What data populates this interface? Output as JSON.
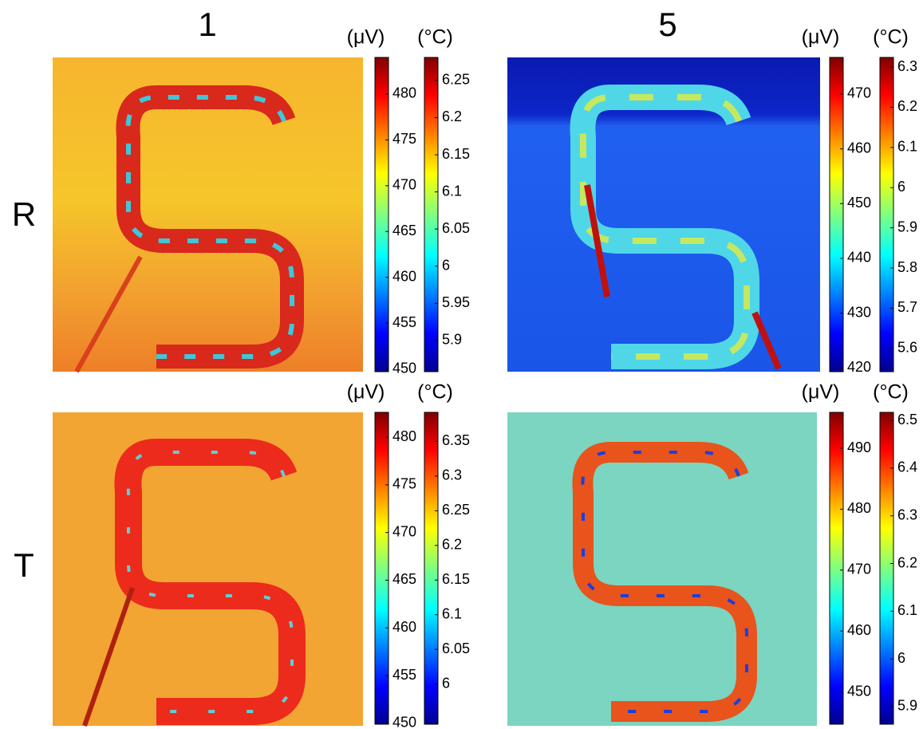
{
  "columns": [
    "1",
    "5"
  ],
  "rows": [
    "R",
    "T"
  ],
  "panels": [
    {
      "colorbars": [
        {
          "unit": "(μV)",
          "lim": [
            449.7,
            484
          ],
          "ticks": [
            480,
            475,
            470,
            465,
            460,
            455,
            450
          ]
        },
        {
          "unit": "(°C)",
          "lim": [
            5.858,
            6.281
          ],
          "ticks": [
            6.25,
            6.2,
            6.15,
            6.1,
            6.05,
            6,
            5.95,
            5.9
          ]
        }
      ]
    },
    {
      "colorbars": [
        {
          "unit": "(μV)",
          "lim": [
            419.3,
            476.7
          ],
          "ticks": [
            470,
            460,
            450,
            440,
            430,
            420
          ]
        },
        {
          "unit": "(°C)",
          "lim": [
            5.542,
            6.324
          ],
          "ticks": [
            6.3,
            6.2,
            6.1,
            6,
            5.9,
            5.8,
            5.7,
            5.6
          ]
        }
      ]
    },
    {
      "colorbars": [
        {
          "unit": "(μV)",
          "lim": [
            449.9,
            482.6
          ],
          "ticks": [
            480,
            475,
            470,
            465,
            460,
            455,
            450
          ]
        },
        {
          "unit": "(°C)",
          "lim": [
            5.942,
            6.392
          ],
          "ticks": [
            6.35,
            6.3,
            6.25,
            6.2,
            6.15,
            6.1,
            6.05,
            6
          ]
        }
      ]
    },
    {
      "colorbars": [
        {
          "unit": "(μV)",
          "lim": [
            444.7,
            495.9
          ],
          "ticks": [
            490,
            480,
            470,
            460,
            450
          ]
        },
        {
          "unit": "(°C)",
          "lim": [
            5.863,
            6.517
          ],
          "ticks": [
            6.5,
            6.4,
            6.3,
            6.2,
            6.1,
            6,
            5.9
          ]
        }
      ]
    }
  ]
}
